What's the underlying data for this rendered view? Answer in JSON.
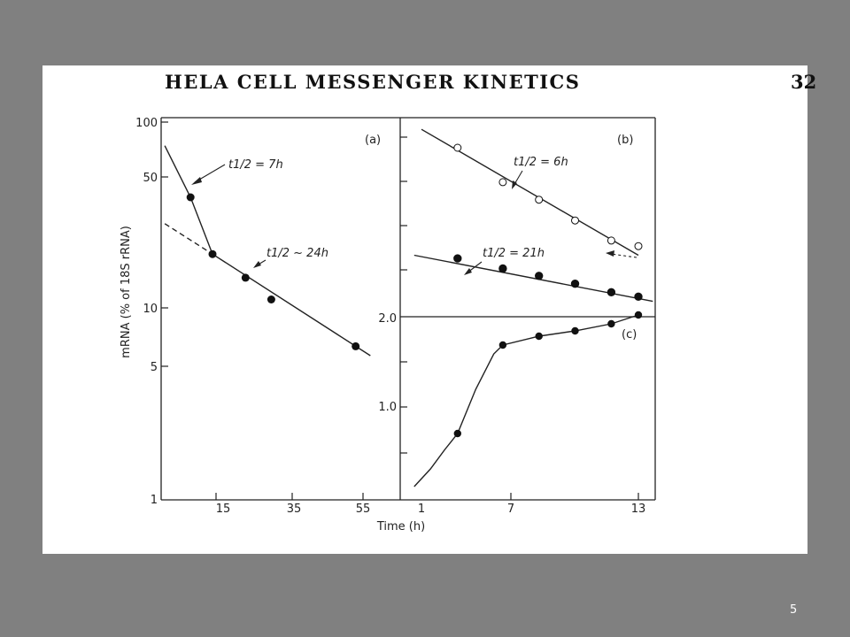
{
  "figure": {
    "title": "HELA CELL MESSENGER KINETICS",
    "page_number": "32",
    "colors": {
      "background": "#808080",
      "figure_bg": "#ffffff",
      "ink": "#222222"
    }
  },
  "slide_number": "5",
  "chart_data": [
    {
      "panel": "(a)",
      "type": "scatter",
      "ylabel": "mRNA (% of 18S rRNA)",
      "xlabel": "Time (h)",
      "yscale": "log",
      "ylim": [
        1,
        100
      ],
      "xlim": [
        0,
        60
      ],
      "yticks": [
        1,
        5,
        10,
        50,
        100
      ],
      "ytick_labels": [
        "1",
        "5",
        "10",
        "50",
        "100"
      ],
      "xticks": [
        15,
        35,
        55
      ],
      "xtick_labels": [
        "15",
        "35",
        "55"
      ],
      "series": [
        {
          "marker": "filled-circle",
          "x": [
            8,
            14,
            23,
            30,
            53
          ],
          "y": [
            40,
            20,
            15,
            11.5,
            6.5
          ]
        }
      ],
      "lines": [
        {
          "style": "solid",
          "x": [
            1,
            8,
            14
          ],
          "y": [
            75,
            40,
            20
          ]
        },
        {
          "style": "solid",
          "x": [
            14,
            57
          ],
          "y": [
            20,
            5.8
          ]
        },
        {
          "style": "dashed",
          "x": [
            1,
            14
          ],
          "y": [
            29,
            20
          ]
        }
      ],
      "annotations": [
        "t1/2 = 7h",
        "t1/2 ~ 24h"
      ]
    },
    {
      "panel": "(b)",
      "type": "scatter",
      "yscale": "log",
      "ytick_labels": [
        "2.0"
      ],
      "series": [
        {
          "marker": "open-circle",
          "x": [
            3,
            5.5,
            7.5,
            9.5,
            11.5,
            13
          ],
          "y": [
            9.3,
            6.8,
            5.8,
            4.8,
            4.0,
            3.8
          ]
        },
        {
          "marker": "filled-circle",
          "x": [
            3,
            5.5,
            7.5,
            9.5,
            11.5,
            13
          ],
          "y": [
            3.4,
            3.1,
            2.9,
            2.7,
            2.5,
            2.4
          ]
        }
      ],
      "annotations": [
        "t1/2 = 6h",
        "t1/2 = 21h"
      ]
    },
    {
      "panel": "(c)",
      "type": "line",
      "xlabel": "Time (h)",
      "xlim": [
        0.5,
        13.5
      ],
      "xticks": [
        1,
        7,
        13
      ],
      "xtick_labels": [
        "1",
        "7",
        "13"
      ],
      "ytick_labels": [
        "1.0"
      ],
      "series": [
        {
          "marker": "filled-circle",
          "x": [
            3,
            5.5,
            7.5,
            9.5,
            11.5,
            13
          ],
          "y": [
            0.85,
            1.35,
            1.4,
            1.43,
            1.47,
            1.52
          ]
        }
      ]
    }
  ]
}
